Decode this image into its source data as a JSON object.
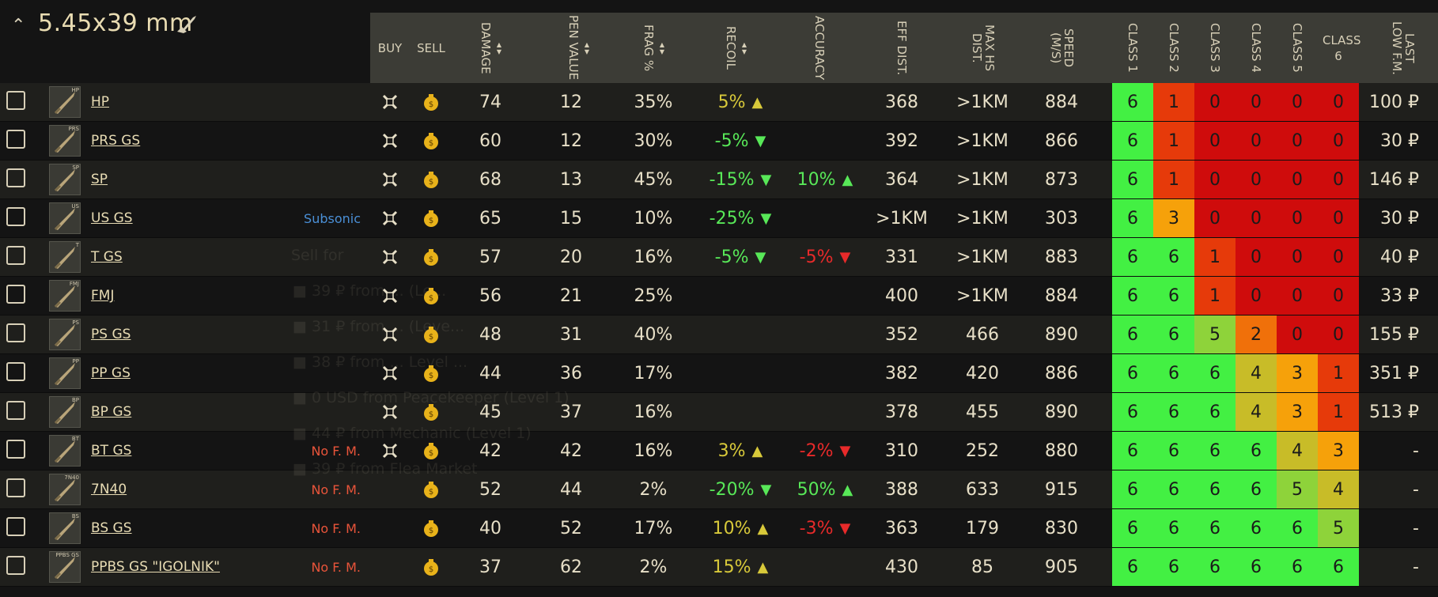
{
  "caliber": {
    "title": "5.45x39 mm"
  },
  "columns": {
    "buy": "BUY",
    "sell": "SELL",
    "damage": "DAMAGE",
    "pen_value": "PEN VALUE",
    "frag": "FRAG %",
    "recoil": "RECOIL",
    "accuracy": "ACCURACY",
    "eff_dist": "EFF DIST.",
    "max_hs": "MAX HS DIST.",
    "speed": "SPEED (M/S)",
    "class1": "CLASS 1",
    "class2": "CLASS 2",
    "class3": "CLASS 3",
    "class4": "CLASS 4",
    "class5": "CLASS 5",
    "class6": "CLASS 6",
    "last_low": "LAST LOW F.M."
  },
  "rows": [
    {
      "tag_img": "HP",
      "name": "HP",
      "tag": "",
      "buy": true,
      "damage": "74",
      "pen": "12",
      "frag": "35%",
      "recoil": "5%",
      "recoil_dir": "up",
      "recoil_color": "yellow",
      "accuracy": "",
      "acc_dir": "",
      "acc_color": "",
      "eff": "368",
      "maxhs": ">1KM",
      "speed": "884",
      "classes": [
        "6",
        "1",
        "0",
        "0",
        "0",
        "0"
      ],
      "class_colors": [
        "#43f043",
        "#e63a0a",
        "#cf0c0c",
        "#cf0c0c",
        "#cf0c0c",
        "#cf0c0c"
      ],
      "last": "100 ₽"
    },
    {
      "tag_img": "PRS",
      "name": "PRS GS",
      "tag": "",
      "buy": true,
      "damage": "60",
      "pen": "12",
      "frag": "30%",
      "recoil": "-5%",
      "recoil_dir": "down",
      "recoil_color": "green",
      "accuracy": "",
      "acc_dir": "",
      "acc_color": "",
      "eff": "392",
      "maxhs": ">1KM",
      "speed": "866",
      "classes": [
        "6",
        "1",
        "0",
        "0",
        "0",
        "0"
      ],
      "class_colors": [
        "#43f043",
        "#e63a0a",
        "#cf0c0c",
        "#cf0c0c",
        "#cf0c0c",
        "#cf0c0c"
      ],
      "last": "30 ₽"
    },
    {
      "tag_img": "SP",
      "name": "SP",
      "tag": "",
      "buy": true,
      "damage": "68",
      "pen": "13",
      "frag": "45%",
      "recoil": "-15%",
      "recoil_dir": "down",
      "recoil_color": "green",
      "accuracy": "10%",
      "acc_dir": "up",
      "acc_color": "green",
      "eff": "364",
      "maxhs": ">1KM",
      "speed": "873",
      "classes": [
        "6",
        "1",
        "0",
        "0",
        "0",
        "0"
      ],
      "class_colors": [
        "#43f043",
        "#e63a0a",
        "#cf0c0c",
        "#cf0c0c",
        "#cf0c0c",
        "#cf0c0c"
      ],
      "last": "146 ₽"
    },
    {
      "tag_img": "US",
      "name": "US GS",
      "tag": "Subsonic",
      "tag_type": "subsonic",
      "buy": true,
      "damage": "65",
      "pen": "15",
      "frag": "10%",
      "recoil": "-25%",
      "recoil_dir": "down",
      "recoil_color": "green",
      "accuracy": "",
      "acc_dir": "",
      "acc_color": "",
      "eff": ">1KM",
      "maxhs": ">1KM",
      "speed": "303",
      "classes": [
        "6",
        "3",
        "0",
        "0",
        "0",
        "0"
      ],
      "class_colors": [
        "#43f043",
        "#f6a10a",
        "#cf0c0c",
        "#cf0c0c",
        "#cf0c0c",
        "#cf0c0c"
      ],
      "last": "30 ₽"
    },
    {
      "tag_img": "T",
      "name": "T GS",
      "tag": "",
      "buy": true,
      "damage": "57",
      "pen": "20",
      "frag": "16%",
      "recoil": "-5%",
      "recoil_dir": "down",
      "recoil_color": "green",
      "accuracy": "-5%",
      "acc_dir": "down",
      "acc_color": "red",
      "eff": "331",
      "maxhs": ">1KM",
      "speed": "883",
      "classes": [
        "6",
        "6",
        "1",
        "0",
        "0",
        "0"
      ],
      "class_colors": [
        "#43f043",
        "#43f043",
        "#e63a0a",
        "#cf0c0c",
        "#cf0c0c",
        "#cf0c0c"
      ],
      "last": "40 ₽"
    },
    {
      "tag_img": "FMJ",
      "name": "FMJ",
      "tag": "",
      "buy": true,
      "damage": "56",
      "pen": "21",
      "frag": "25%",
      "recoil": "",
      "recoil_dir": "",
      "recoil_color": "",
      "accuracy": "",
      "acc_dir": "",
      "acc_color": "",
      "eff": "400",
      "maxhs": ">1KM",
      "speed": "884",
      "classes": [
        "6",
        "6",
        "1",
        "0",
        "0",
        "0"
      ],
      "class_colors": [
        "#43f043",
        "#43f043",
        "#e63a0a",
        "#cf0c0c",
        "#cf0c0c",
        "#cf0c0c"
      ],
      "last": "33 ₽"
    },
    {
      "tag_img": "PS",
      "name": "PS GS",
      "tag": "",
      "buy": true,
      "damage": "48",
      "pen": "31",
      "frag": "40%",
      "recoil": "",
      "recoil_dir": "",
      "recoil_color": "",
      "accuracy": "",
      "acc_dir": "",
      "acc_color": "",
      "eff": "352",
      "maxhs": "466",
      "speed": "890",
      "classes": [
        "6",
        "6",
        "5",
        "2",
        "0",
        "0"
      ],
      "class_colors": [
        "#43f043",
        "#43f043",
        "#8ed33a",
        "#f0700a",
        "#cf0c0c",
        "#cf0c0c"
      ],
      "last": "155 ₽"
    },
    {
      "tag_img": "PP",
      "name": "PP GS",
      "tag": "",
      "buy": true,
      "damage": "44",
      "pen": "36",
      "frag": "17%",
      "recoil": "",
      "recoil_dir": "",
      "recoil_color": "",
      "accuracy": "",
      "acc_dir": "",
      "acc_color": "",
      "eff": "382",
      "maxhs": "420",
      "speed": "886",
      "classes": [
        "6",
        "6",
        "6",
        "4",
        "3",
        "1"
      ],
      "class_colors": [
        "#43f043",
        "#43f043",
        "#43f043",
        "#c8bc28",
        "#f6a10a",
        "#e63a0a"
      ],
      "last": "351 ₽"
    },
    {
      "tag_img": "BP",
      "name": "BP GS",
      "tag": "",
      "buy": true,
      "damage": "45",
      "pen": "37",
      "frag": "16%",
      "recoil": "",
      "recoil_dir": "",
      "recoil_color": "",
      "accuracy": "",
      "acc_dir": "",
      "acc_color": "",
      "eff": "378",
      "maxhs": "455",
      "speed": "890",
      "classes": [
        "6",
        "6",
        "6",
        "4",
        "3",
        "1"
      ],
      "class_colors": [
        "#43f043",
        "#43f043",
        "#43f043",
        "#c8bc28",
        "#f6a10a",
        "#e63a0a"
      ],
      "last": "513 ₽"
    },
    {
      "tag_img": "BT",
      "name": "BT GS",
      "tag": "No F. M.",
      "tag_type": "nofm",
      "buy": true,
      "damage": "42",
      "pen": "42",
      "frag": "16%",
      "recoil": "3%",
      "recoil_dir": "up",
      "recoil_color": "yellow",
      "accuracy": "-2%",
      "acc_dir": "down",
      "acc_color": "red",
      "eff": "310",
      "maxhs": "252",
      "speed": "880",
      "classes": [
        "6",
        "6",
        "6",
        "6",
        "4",
        "3"
      ],
      "class_colors": [
        "#43f043",
        "#43f043",
        "#43f043",
        "#43f043",
        "#c8bc28",
        "#f6a10a"
      ],
      "last": "-"
    },
    {
      "tag_img": "7N40",
      "name": "7N40",
      "tag": "No F. M.",
      "tag_type": "nofm",
      "buy": false,
      "damage": "52",
      "pen": "44",
      "frag": "2%",
      "recoil": "-20%",
      "recoil_dir": "down",
      "recoil_color": "green",
      "accuracy": "50%",
      "acc_dir": "up",
      "acc_color": "green",
      "eff": "388",
      "maxhs": "633",
      "speed": "915",
      "classes": [
        "6",
        "6",
        "6",
        "6",
        "5",
        "4"
      ],
      "class_colors": [
        "#43f043",
        "#43f043",
        "#43f043",
        "#43f043",
        "#8ed33a",
        "#c8bc28"
      ],
      "last": "-"
    },
    {
      "tag_img": "BS",
      "name": "BS GS",
      "tag": "No F. M.",
      "tag_type": "nofm",
      "buy": false,
      "damage": "40",
      "pen": "52",
      "frag": "17%",
      "recoil": "10%",
      "recoil_dir": "up",
      "recoil_color": "yellow",
      "accuracy": "-3%",
      "acc_dir": "down",
      "acc_color": "red",
      "eff": "363",
      "maxhs": "179",
      "speed": "830",
      "classes": [
        "6",
        "6",
        "6",
        "6",
        "6",
        "5"
      ],
      "class_colors": [
        "#43f043",
        "#43f043",
        "#43f043",
        "#43f043",
        "#43f043",
        "#8ed33a"
      ],
      "last": "-"
    },
    {
      "tag_img": "PPBS GS",
      "name": "PPBS GS \"IGOLNIK\"",
      "tag": "No F. M.",
      "tag_type": "nofm",
      "buy": false,
      "damage": "37",
      "pen": "62",
      "frag": "2%",
      "recoil": "15%",
      "recoil_dir": "up",
      "recoil_color": "yellow",
      "accuracy": "",
      "acc_dir": "",
      "acc_color": "",
      "eff": "430",
      "maxhs": "85",
      "speed": "905",
      "classes": [
        "6",
        "6",
        "6",
        "6",
        "6",
        "6"
      ],
      "class_colors": [
        "#43f043",
        "#43f043",
        "#43f043",
        "#43f043",
        "#43f043",
        "#43f043"
      ],
      "last": "-"
    }
  ],
  "overlay": {
    "title": "Sell for",
    "items": [
      "39 ₽ from ... (Le...",
      "31 ₽ from ... (Leve...",
      "38 ₽ from ... Level ...",
      "0 USD from Peacekeeper (Level 1)",
      "44 ₽ from Mechanic (Level 1)",
      "39 ₽ from Flea Market"
    ]
  }
}
